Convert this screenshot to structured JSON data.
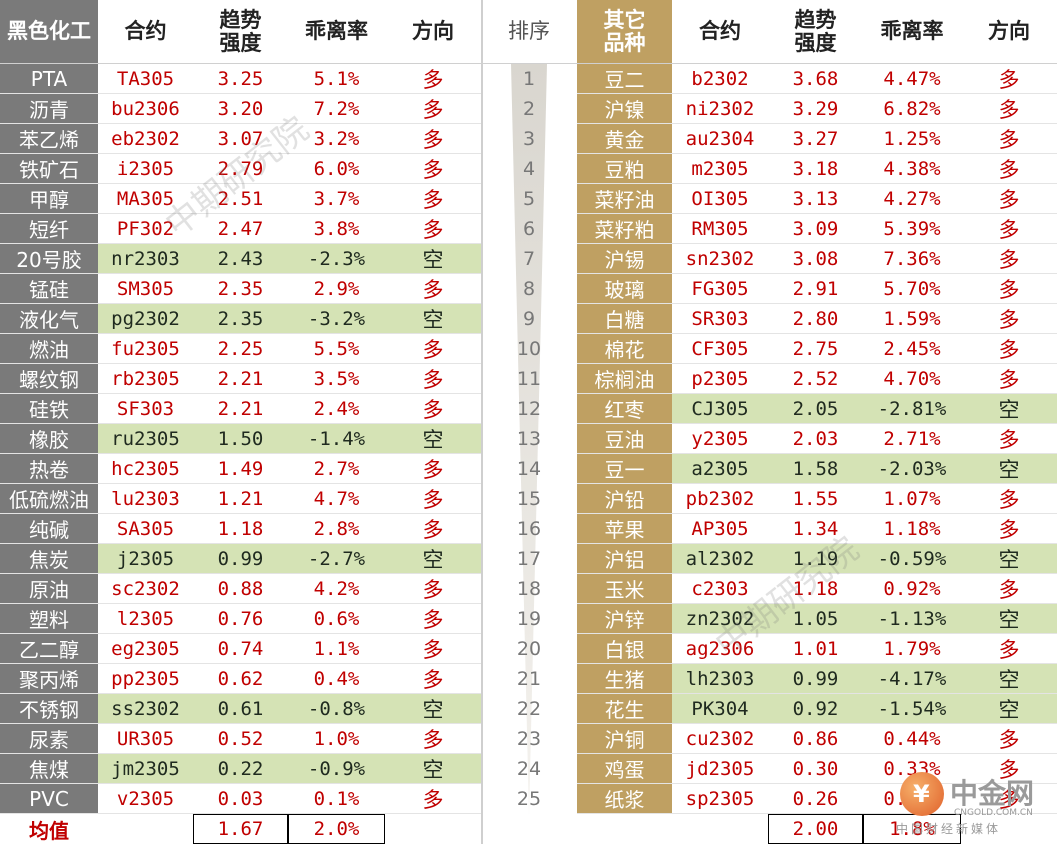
{
  "left_headers": [
    "黑色化工",
    "合约",
    "趋势\n强度",
    "乖离率",
    "方向"
  ],
  "rank_header": "排序",
  "right_headers": [
    "其它\n品种",
    "合约",
    "趋势\n强度",
    "乖离率",
    "方向"
  ],
  "left_rows": [
    {
      "name": "PTA",
      "contract": "TA305",
      "strength": "3.25",
      "deviation": "5.1%",
      "direction": "多"
    },
    {
      "name": "沥青",
      "contract": "bu2306",
      "strength": "3.20",
      "deviation": "7.2%",
      "direction": "多"
    },
    {
      "name": "苯乙烯",
      "contract": "eb2302",
      "strength": "3.07",
      "deviation": "3.2%",
      "direction": "多"
    },
    {
      "name": "铁矿石",
      "contract": "i2305",
      "strength": "2.79",
      "deviation": "6.0%",
      "direction": "多"
    },
    {
      "name": "甲醇",
      "contract": "MA305",
      "strength": "2.51",
      "deviation": "3.7%",
      "direction": "多"
    },
    {
      "name": "短纤",
      "contract": "PF302",
      "strength": "2.47",
      "deviation": "3.8%",
      "direction": "多"
    },
    {
      "name": "20号胶",
      "contract": "nr2303",
      "strength": "2.43",
      "deviation": "-2.3%",
      "direction": "空"
    },
    {
      "name": "锰硅",
      "contract": "SM305",
      "strength": "2.35",
      "deviation": "2.9%",
      "direction": "多"
    },
    {
      "name": "液化气",
      "contract": "pg2302",
      "strength": "2.35",
      "deviation": "-3.2%",
      "direction": "空"
    },
    {
      "name": "燃油",
      "contract": "fu2305",
      "strength": "2.25",
      "deviation": "5.5%",
      "direction": "多"
    },
    {
      "name": "螺纹钢",
      "contract": "rb2305",
      "strength": "2.21",
      "deviation": "3.5%",
      "direction": "多"
    },
    {
      "name": "硅铁",
      "contract": "SF303",
      "strength": "2.21",
      "deviation": "2.4%",
      "direction": "多"
    },
    {
      "name": "橡胶",
      "contract": "ru2305",
      "strength": "1.50",
      "deviation": "-1.4%",
      "direction": "空"
    },
    {
      "name": "热卷",
      "contract": "hc2305",
      "strength": "1.49",
      "deviation": "2.7%",
      "direction": "多"
    },
    {
      "name": "低硫燃油",
      "contract": "lu2303",
      "strength": "1.21",
      "deviation": "4.7%",
      "direction": "多"
    },
    {
      "name": "纯碱",
      "contract": "SA305",
      "strength": "1.18",
      "deviation": "2.8%",
      "direction": "多"
    },
    {
      "name": "焦炭",
      "contract": "j2305",
      "strength": "0.99",
      "deviation": "-2.7%",
      "direction": "空"
    },
    {
      "name": "原油",
      "contract": "sc2302",
      "strength": "0.88",
      "deviation": "4.2%",
      "direction": "多"
    },
    {
      "name": "塑料",
      "contract": "l2305",
      "strength": "0.76",
      "deviation": "0.6%",
      "direction": "多"
    },
    {
      "name": "乙二醇",
      "contract": "eg2305",
      "strength": "0.74",
      "deviation": "1.1%",
      "direction": "多"
    },
    {
      "name": "聚丙烯",
      "contract": "pp2305",
      "strength": "0.62",
      "deviation": "0.4%",
      "direction": "多"
    },
    {
      "name": "不锈钢",
      "contract": "ss2302",
      "strength": "0.61",
      "deviation": "-0.8%",
      "direction": "空"
    },
    {
      "name": "尿素",
      "contract": "UR305",
      "strength": "0.52",
      "deviation": "1.0%",
      "direction": "多"
    },
    {
      "name": "焦煤",
      "contract": "jm2305",
      "strength": "0.22",
      "deviation": "-0.9%",
      "direction": "空"
    },
    {
      "name": "PVC",
      "contract": "v2305",
      "strength": "0.03",
      "deviation": "0.1%",
      "direction": "多"
    }
  ],
  "ranks": [
    "1",
    "2",
    "3",
    "4",
    "5",
    "6",
    "7",
    "8",
    "9",
    "10",
    "11",
    "12",
    "13",
    "14",
    "15",
    "16",
    "17",
    "18",
    "19",
    "20",
    "21",
    "22",
    "23",
    "24",
    "25"
  ],
  "right_rows": [
    {
      "name": "豆二",
      "contract": "b2302",
      "strength": "3.68",
      "deviation": "4.47%",
      "direction": "多"
    },
    {
      "name": "沪镍",
      "contract": "ni2302",
      "strength": "3.29",
      "deviation": "6.82%",
      "direction": "多"
    },
    {
      "name": "黄金",
      "contract": "au2304",
      "strength": "3.27",
      "deviation": "1.25%",
      "direction": "多"
    },
    {
      "name": "豆粕",
      "contract": "m2305",
      "strength": "3.18",
      "deviation": "4.38%",
      "direction": "多"
    },
    {
      "name": "菜籽油",
      "contract": "OI305",
      "strength": "3.13",
      "deviation": "4.27%",
      "direction": "多"
    },
    {
      "name": "菜籽粕",
      "contract": "RM305",
      "strength": "3.09",
      "deviation": "5.39%",
      "direction": "多"
    },
    {
      "name": "沪锡",
      "contract": "sn2302",
      "strength": "3.08",
      "deviation": "7.36%",
      "direction": "多"
    },
    {
      "name": "玻璃",
      "contract": "FG305",
      "strength": "2.91",
      "deviation": "5.70%",
      "direction": "多"
    },
    {
      "name": "白糖",
      "contract": "SR303",
      "strength": "2.80",
      "deviation": "1.59%",
      "direction": "多"
    },
    {
      "name": "棉花",
      "contract": "CF305",
      "strength": "2.75",
      "deviation": "2.45%",
      "direction": "多"
    },
    {
      "name": "棕榈油",
      "contract": "p2305",
      "strength": "2.52",
      "deviation": "4.70%",
      "direction": "多"
    },
    {
      "name": "红枣",
      "contract": "CJ305",
      "strength": "2.05",
      "deviation": "-2.81%",
      "direction": "空"
    },
    {
      "name": "豆油",
      "contract": "y2305",
      "strength": "2.03",
      "deviation": "2.71%",
      "direction": "多"
    },
    {
      "name": "豆一",
      "contract": "a2305",
      "strength": "1.58",
      "deviation": "-2.03%",
      "direction": "空"
    },
    {
      "name": "沪铅",
      "contract": "pb2302",
      "strength": "1.55",
      "deviation": "1.07%",
      "direction": "多"
    },
    {
      "name": "苹果",
      "contract": "AP305",
      "strength": "1.34",
      "deviation": "1.18%",
      "direction": "多"
    },
    {
      "name": "沪铝",
      "contract": "al2302",
      "strength": "1.19",
      "deviation": "-0.59%",
      "direction": "空"
    },
    {
      "name": "玉米",
      "contract": "c2303",
      "strength": "1.18",
      "deviation": "0.92%",
      "direction": "多"
    },
    {
      "name": "沪锌",
      "contract": "zn2302",
      "strength": "1.05",
      "deviation": "-1.13%",
      "direction": "空"
    },
    {
      "name": "白银",
      "contract": "ag2306",
      "strength": "1.01",
      "deviation": "1.79%",
      "direction": "多"
    },
    {
      "name": "生猪",
      "contract": "lh2303",
      "strength": "0.99",
      "deviation": "-4.17%",
      "direction": "空"
    },
    {
      "name": "花生",
      "contract": "PK304",
      "strength": "0.92",
      "deviation": "-1.54%",
      "direction": "空"
    },
    {
      "name": "沪铜",
      "contract": "cu2302",
      "strength": "0.86",
      "deviation": "0.44%",
      "direction": "多"
    },
    {
      "name": "鸡蛋",
      "contract": "jd2305",
      "strength": "0.30",
      "deviation": "0.33%",
      "direction": "多"
    },
    {
      "name": "纸浆",
      "contract": "sp2305",
      "strength": "0.26",
      "deviation": "0.23%",
      "direction": "多"
    }
  ],
  "summary": {
    "label": "均值",
    "left_strength": "1.67",
    "left_deviation": "2.0%",
    "right_strength": "2.00",
    "right_deviation": "1.8%"
  },
  "watermark": "中期研究院",
  "logo": {
    "name": "中金网",
    "url": "CNGOLD.COM.CN",
    "tagline": "中国财经新媒体"
  },
  "colors": {
    "category_bg": "#7a7a7a",
    "other_category_bg": "#bfa062",
    "short_bg": "#d5e3b5",
    "value_red": "#c00000"
  }
}
